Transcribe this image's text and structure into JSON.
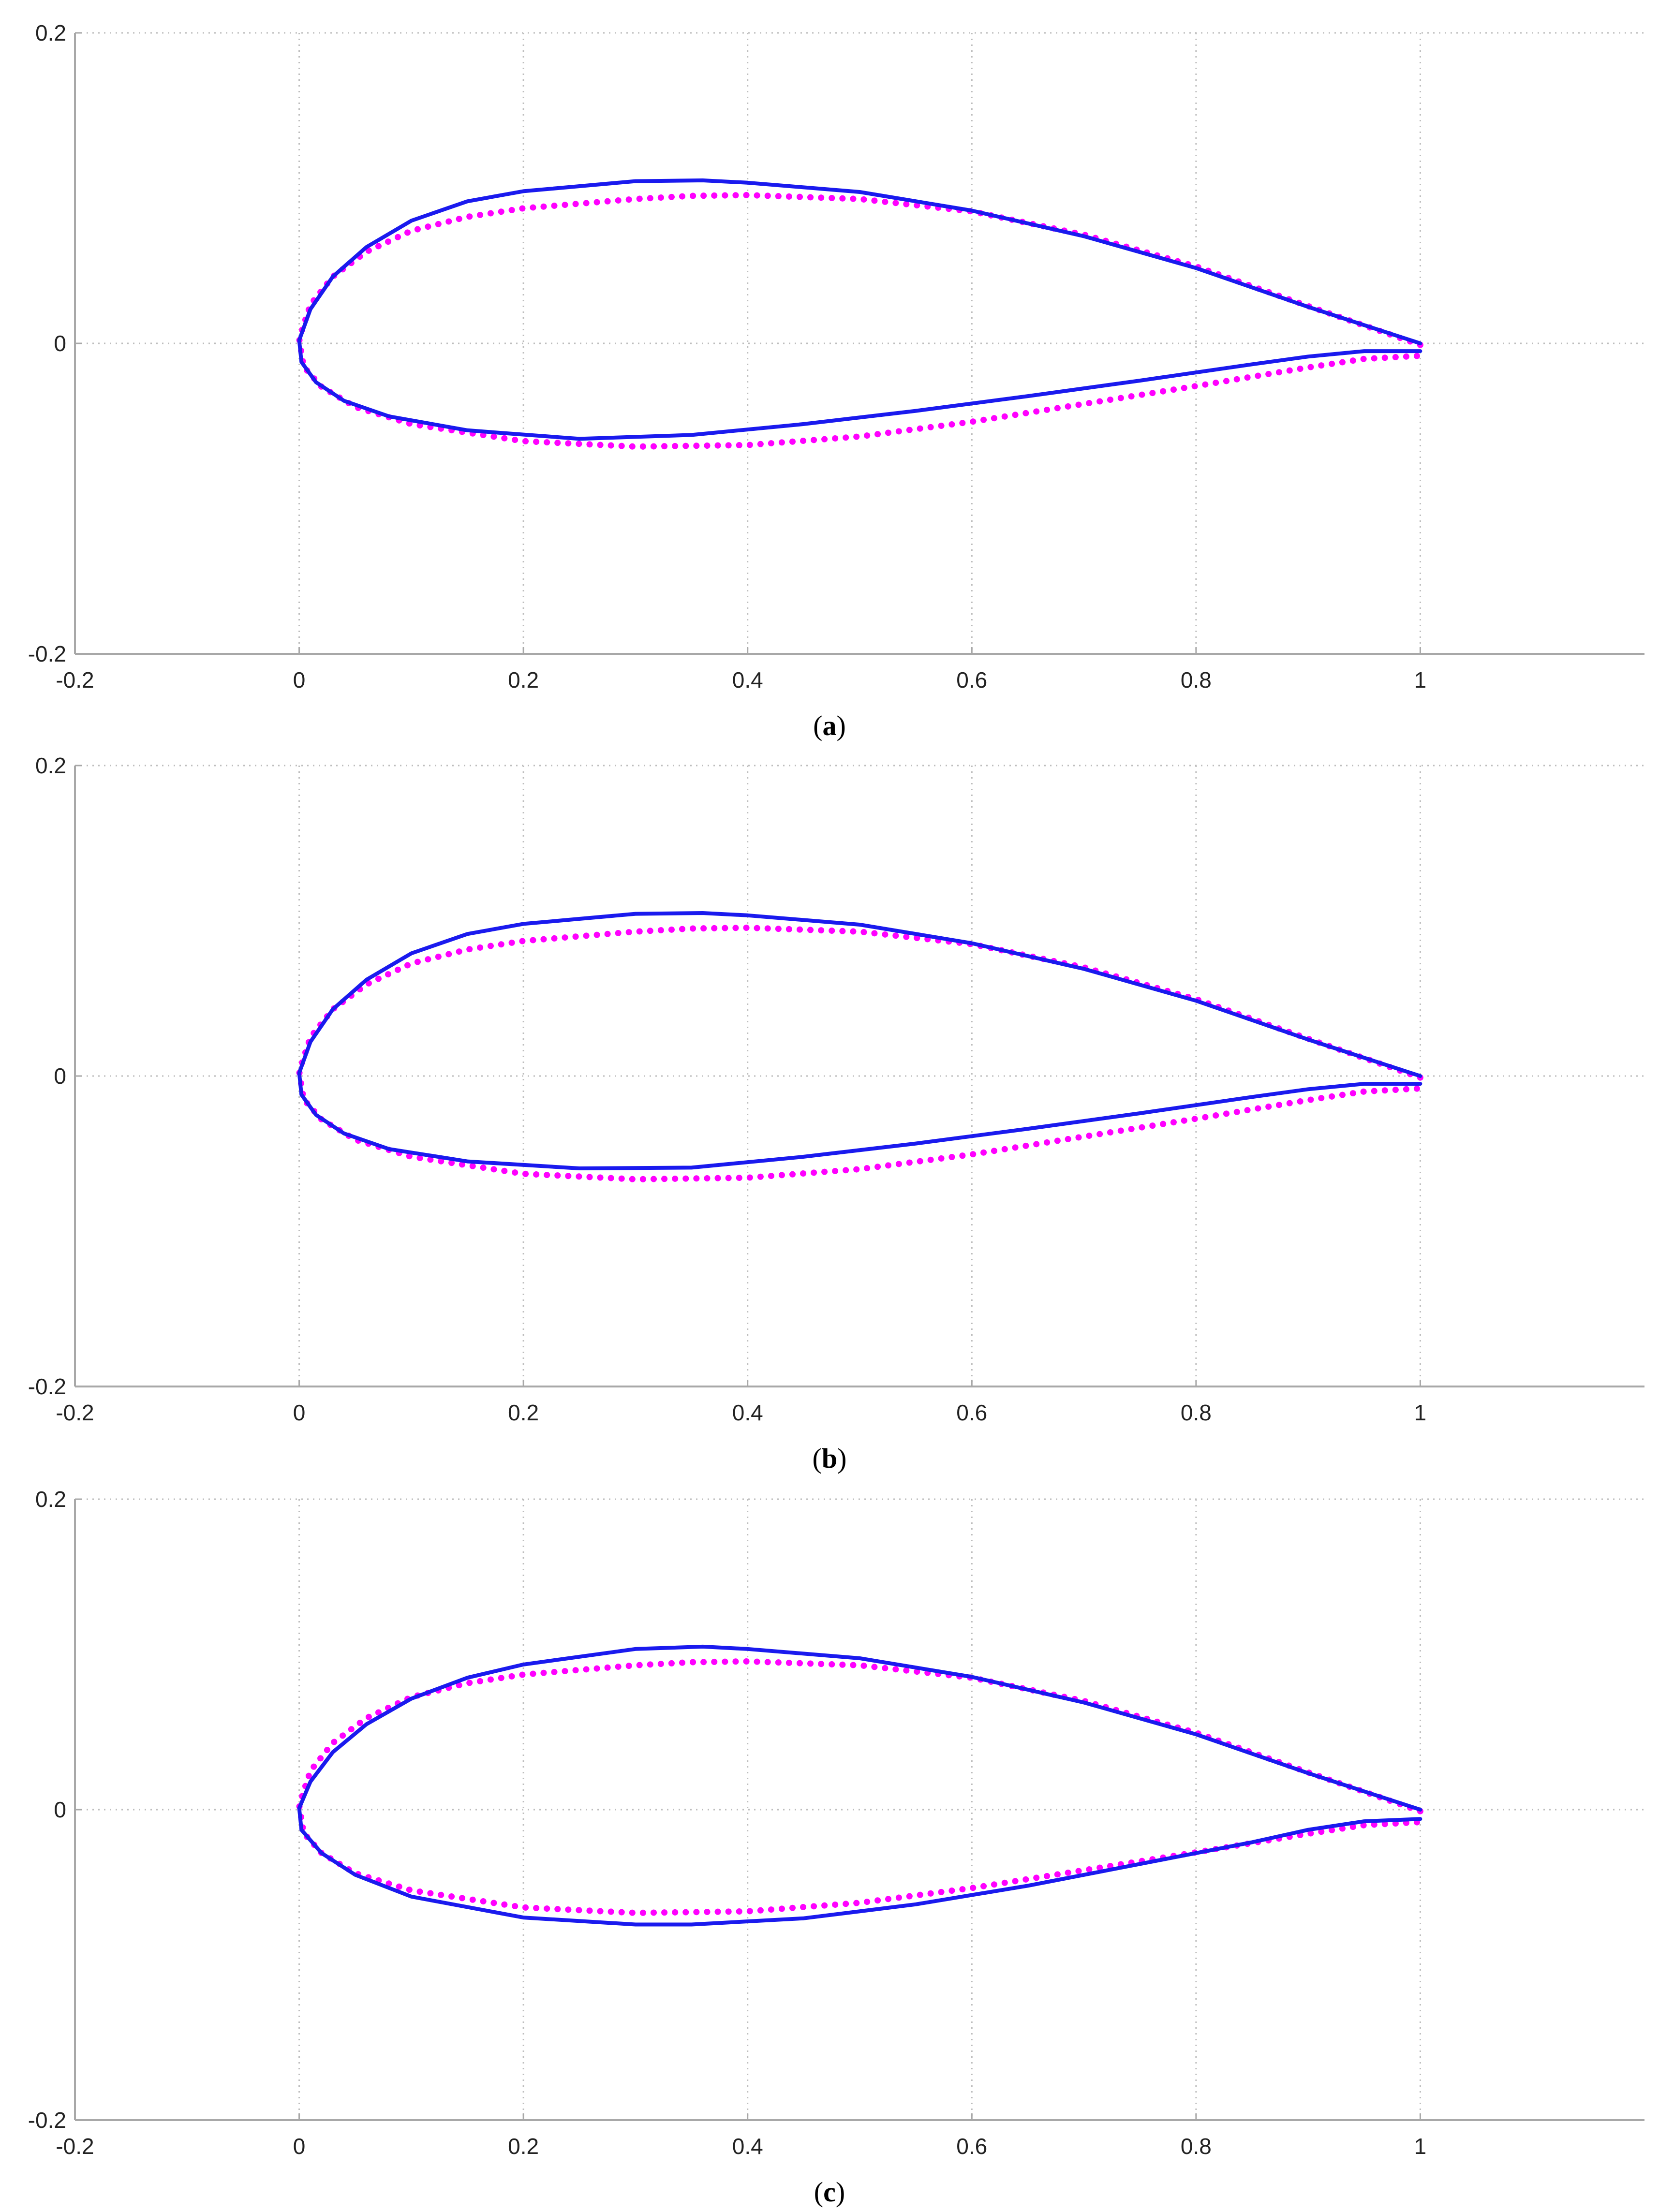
{
  "chart_data": [
    {
      "type": "line",
      "caption": {
        "open": "(",
        "letter": "a",
        "close": ")"
      },
      "xlim": [
        -0.2,
        1.2
      ],
      "ylim": [
        -0.2,
        0.2
      ],
      "x_ticks": [
        {
          "value": -0.2,
          "label": "-0.2"
        },
        {
          "value": 0,
          "label": "0"
        },
        {
          "value": 0.2,
          "label": "0.2"
        },
        {
          "value": 0.4,
          "label": "0.4"
        },
        {
          "value": 0.6,
          "label": "0.6"
        },
        {
          "value": 0.8,
          "label": "0.8"
        },
        {
          "value": 1,
          "label": "1"
        }
      ],
      "y_ticks": [
        {
          "value": 0.2,
          "label": "0.2"
        },
        {
          "value": 0,
          "label": "0"
        },
        {
          "value": -0.2,
          "label": "-0.2"
        }
      ],
      "grid": true,
      "series": [
        {
          "style": "solid",
          "color": "#1a1aee",
          "points": [
            [
              1.0,
              0.0
            ],
            [
              0.9,
              0.0235
            ],
            [
              0.8,
              0.0485
            ],
            [
              0.7,
              0.069
            ],
            [
              0.6,
              0.0855
            ],
            [
              0.5,
              0.0975
            ],
            [
              0.4,
              0.1035
            ],
            [
              0.36,
              0.105
            ],
            [
              0.3,
              0.1045
            ],
            [
              0.2,
              0.098
            ],
            [
              0.15,
              0.0915
            ],
            [
              0.1,
              0.079
            ],
            [
              0.06,
              0.062
            ],
            [
              0.03,
              0.043
            ],
            [
              0.01,
              0.022
            ],
            [
              0.0,
              0.002
            ],
            [
              0.002,
              -0.012
            ],
            [
              0.015,
              -0.025
            ],
            [
              0.04,
              -0.037
            ],
            [
              0.08,
              -0.047
            ],
            [
              0.15,
              -0.056
            ],
            [
              0.25,
              -0.0615
            ],
            [
              0.35,
              -0.059
            ],
            [
              0.45,
              -0.052
            ],
            [
              0.55,
              -0.0435
            ],
            [
              0.65,
              -0.034
            ],
            [
              0.75,
              -0.024
            ],
            [
              0.85,
              -0.0135
            ],
            [
              0.9,
              -0.0085
            ],
            [
              0.95,
              -0.005
            ],
            [
              1.0,
              -0.005
            ]
          ]
        },
        {
          "style": "dotted",
          "color": "#ff00ff",
          "points": [
            [
              1.0,
              -0.001
            ],
            [
              0.9,
              0.024
            ],
            [
              0.8,
              0.0495
            ],
            [
              0.7,
              0.07
            ],
            [
              0.6,
              0.085
            ],
            [
              0.5,
              0.093
            ],
            [
              0.4,
              0.0955
            ],
            [
              0.35,
              0.095
            ],
            [
              0.3,
              0.093
            ],
            [
              0.2,
              0.087
            ],
            [
              0.15,
              0.0815
            ],
            [
              0.1,
              0.0725
            ],
            [
              0.06,
              0.059
            ],
            [
              0.03,
              0.043
            ],
            [
              0.01,
              0.025
            ],
            [
              0.0,
              0.003
            ],
            [
              0.004,
              -0.015
            ],
            [
              0.02,
              -0.028
            ],
            [
              0.05,
              -0.041
            ],
            [
              0.1,
              -0.052
            ],
            [
              0.2,
              -0.063
            ],
            [
              0.3,
              -0.0665
            ],
            [
              0.4,
              -0.0655
            ],
            [
              0.5,
              -0.06
            ],
            [
              0.6,
              -0.0505
            ],
            [
              0.7,
              -0.039
            ],
            [
              0.8,
              -0.0275
            ],
            [
              0.9,
              -0.0155
            ],
            [
              0.95,
              -0.01
            ],
            [
              1.0,
              -0.008
            ]
          ]
        }
      ]
    },
    {
      "type": "line",
      "caption": {
        "open": "(",
        "letter": "b",
        "close": ")"
      },
      "xlim": [
        -0.2,
        1.2
      ],
      "ylim": [
        -0.2,
        0.2
      ],
      "x_ticks": [
        {
          "value": -0.2,
          "label": "-0.2"
        },
        {
          "value": 0,
          "label": "0"
        },
        {
          "value": 0.2,
          "label": "0.2"
        },
        {
          "value": 0.4,
          "label": "0.4"
        },
        {
          "value": 0.6,
          "label": "0.6"
        },
        {
          "value": 0.8,
          "label": "0.8"
        },
        {
          "value": 1,
          "label": "1"
        }
      ],
      "y_ticks": [
        {
          "value": 0.2,
          "label": "0.2"
        },
        {
          "value": 0,
          "label": "0"
        },
        {
          "value": -0.2,
          "label": "-0.2"
        }
      ],
      "grid": true,
      "series": [
        {
          "style": "solid",
          "color": "#1a1aee",
          "points": [
            [
              1.0,
              0.0
            ],
            [
              0.9,
              0.0235
            ],
            [
              0.8,
              0.0485
            ],
            [
              0.7,
              0.069
            ],
            [
              0.6,
              0.0855
            ],
            [
              0.5,
              0.0975
            ],
            [
              0.4,
              0.1035
            ],
            [
              0.36,
              0.105
            ],
            [
              0.3,
              0.1045
            ],
            [
              0.2,
              0.098
            ],
            [
              0.15,
              0.0915
            ],
            [
              0.1,
              0.079
            ],
            [
              0.06,
              0.062
            ],
            [
              0.03,
              0.043
            ],
            [
              0.01,
              0.022
            ],
            [
              0.0,
              0.002
            ],
            [
              0.002,
              -0.012
            ],
            [
              0.015,
              -0.025
            ],
            [
              0.04,
              -0.037
            ],
            [
              0.08,
              -0.047
            ],
            [
              0.15,
              -0.055
            ],
            [
              0.25,
              -0.0595
            ],
            [
              0.35,
              -0.059
            ],
            [
              0.45,
              -0.052
            ],
            [
              0.55,
              -0.0435
            ],
            [
              0.65,
              -0.034
            ],
            [
              0.75,
              -0.024
            ],
            [
              0.85,
              -0.0135
            ],
            [
              0.9,
              -0.0085
            ],
            [
              0.95,
              -0.005
            ],
            [
              1.0,
              -0.005
            ]
          ]
        },
        {
          "style": "dotted",
          "color": "#ff00ff",
          "points": [
            [
              1.0,
              -0.001
            ],
            [
              0.9,
              0.024
            ],
            [
              0.8,
              0.0495
            ],
            [
              0.7,
              0.07
            ],
            [
              0.6,
              0.085
            ],
            [
              0.5,
              0.093
            ],
            [
              0.4,
              0.0955
            ],
            [
              0.35,
              0.095
            ],
            [
              0.3,
              0.093
            ],
            [
              0.2,
              0.087
            ],
            [
              0.15,
              0.0815
            ],
            [
              0.1,
              0.0725
            ],
            [
              0.06,
              0.059
            ],
            [
              0.03,
              0.043
            ],
            [
              0.01,
              0.025
            ],
            [
              0.0,
              0.003
            ],
            [
              0.004,
              -0.015
            ],
            [
              0.02,
              -0.028
            ],
            [
              0.05,
              -0.041
            ],
            [
              0.1,
              -0.052
            ],
            [
              0.2,
              -0.063
            ],
            [
              0.3,
              -0.0665
            ],
            [
              0.4,
              -0.0655
            ],
            [
              0.5,
              -0.06
            ],
            [
              0.6,
              -0.0505
            ],
            [
              0.7,
              -0.039
            ],
            [
              0.8,
              -0.0275
            ],
            [
              0.9,
              -0.0155
            ],
            [
              0.95,
              -0.01
            ],
            [
              1.0,
              -0.008
            ]
          ]
        }
      ]
    },
    {
      "type": "line",
      "caption": {
        "open": "(",
        "letter": "c",
        "close": ")"
      },
      "xlim": [
        -0.2,
        1.2
      ],
      "ylim": [
        -0.2,
        0.2
      ],
      "x_ticks": [
        {
          "value": -0.2,
          "label": "-0.2"
        },
        {
          "value": 0,
          "label": "0"
        },
        {
          "value": 0.2,
          "label": "0.2"
        },
        {
          "value": 0.4,
          "label": "0.4"
        },
        {
          "value": 0.6,
          "label": "0.6"
        },
        {
          "value": 0.8,
          "label": "0.8"
        },
        {
          "value": 1,
          "label": "1"
        }
      ],
      "y_ticks": [
        {
          "value": 0.2,
          "label": "0.2"
        },
        {
          "value": 0,
          "label": "0"
        },
        {
          "value": -0.2,
          "label": "-0.2"
        }
      ],
      "grid": true,
      "series": [
        {
          "style": "solid",
          "color": "#1a1aee",
          "points": [
            [
              1.0,
              0.0
            ],
            [
              0.9,
              0.0235
            ],
            [
              0.8,
              0.0485
            ],
            [
              0.7,
              0.069
            ],
            [
              0.6,
              0.0855
            ],
            [
              0.5,
              0.0975
            ],
            [
              0.4,
              0.1035
            ],
            [
              0.36,
              0.105
            ],
            [
              0.3,
              0.1035
            ],
            [
              0.2,
              0.0935
            ],
            [
              0.15,
              0.085
            ],
            [
              0.1,
              0.0715
            ],
            [
              0.06,
              0.055
            ],
            [
              0.03,
              0.037
            ],
            [
              0.01,
              0.018
            ],
            [
              0.0,
              0.001
            ],
            [
              0.002,
              -0.013
            ],
            [
              0.02,
              -0.028
            ],
            [
              0.05,
              -0.042
            ],
            [
              0.1,
              -0.056
            ],
            [
              0.2,
              -0.0695
            ],
            [
              0.3,
              -0.074
            ],
            [
              0.35,
              -0.074
            ],
            [
              0.45,
              -0.07
            ],
            [
              0.55,
              -0.061
            ],
            [
              0.65,
              -0.049
            ],
            [
              0.75,
              -0.035
            ],
            [
              0.85,
              -0.021
            ],
            [
              0.9,
              -0.013
            ],
            [
              0.95,
              -0.0075
            ],
            [
              1.0,
              -0.006
            ]
          ]
        },
        {
          "style": "dotted",
          "color": "#ff00ff",
          "points": [
            [
              1.0,
              -0.001
            ],
            [
              0.9,
              0.024
            ],
            [
              0.8,
              0.0495
            ],
            [
              0.7,
              0.07
            ],
            [
              0.6,
              0.085
            ],
            [
              0.5,
              0.093
            ],
            [
              0.4,
              0.0955
            ],
            [
              0.35,
              0.095
            ],
            [
              0.3,
              0.093
            ],
            [
              0.2,
              0.087
            ],
            [
              0.15,
              0.0815
            ],
            [
              0.1,
              0.0725
            ],
            [
              0.06,
              0.059
            ],
            [
              0.03,
              0.043
            ],
            [
              0.01,
              0.025
            ],
            [
              0.0,
              0.003
            ],
            [
              0.004,
              -0.015
            ],
            [
              0.02,
              -0.028
            ],
            [
              0.05,
              -0.041
            ],
            [
              0.1,
              -0.052
            ],
            [
              0.2,
              -0.063
            ],
            [
              0.3,
              -0.0665
            ],
            [
              0.4,
              -0.0655
            ],
            [
              0.5,
              -0.06
            ],
            [
              0.6,
              -0.0505
            ],
            [
              0.7,
              -0.039
            ],
            [
              0.8,
              -0.0275
            ],
            [
              0.9,
              -0.0155
            ],
            [
              0.95,
              -0.01
            ],
            [
              1.0,
              -0.008
            ]
          ]
        }
      ]
    }
  ]
}
